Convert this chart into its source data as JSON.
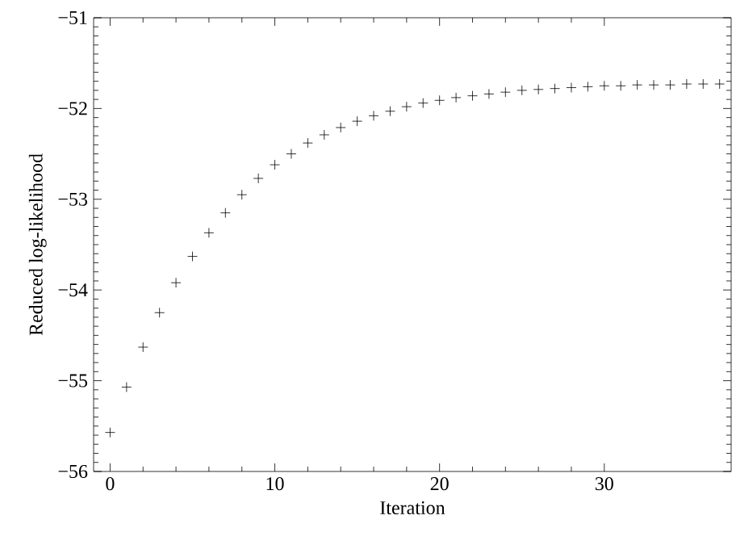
{
  "chart_data": {
    "type": "scatter",
    "xlabel": "Iteration",
    "ylabel": "Reduced log-likelihood",
    "marker": "cross",
    "color": "#000000",
    "x": [
      0,
      1,
      2,
      3,
      4,
      5,
      6,
      7,
      8,
      9,
      10,
      11,
      12,
      13,
      14,
      15,
      16,
      17,
      18,
      19,
      20,
      21,
      22,
      23,
      24,
      25,
      26,
      27,
      28,
      29,
      30,
      31,
      32,
      33,
      34,
      35,
      36,
      37
    ],
    "values": [
      -55.57,
      -55.07,
      -54.63,
      -54.25,
      -53.92,
      -53.63,
      -53.37,
      -53.15,
      -52.95,
      -52.77,
      -52.62,
      -52.5,
      -52.38,
      -52.29,
      -52.21,
      -52.14,
      -52.08,
      -52.03,
      -51.98,
      -51.94,
      -51.91,
      -51.88,
      -51.86,
      -51.84,
      -51.82,
      -51.8,
      -51.79,
      -51.78,
      -51.77,
      -51.76,
      -51.75,
      -51.75,
      -51.74,
      -51.74,
      -51.74,
      -51.73,
      -51.73,
      -51.73
    ],
    "xlim": [
      -1,
      37.7
    ],
    "ylim": [
      -56,
      -51
    ],
    "xticks": [
      0,
      10,
      20,
      30
    ],
    "yticks": [
      {
        "value": -56,
        "label": "−56"
      },
      {
        "value": -55,
        "label": "−55"
      },
      {
        "value": -54,
        "label": "−54"
      },
      {
        "value": -53,
        "label": "−53"
      },
      {
        "value": -52,
        "label": "−52"
      },
      {
        "value": -51,
        "label": "−51"
      }
    ]
  }
}
